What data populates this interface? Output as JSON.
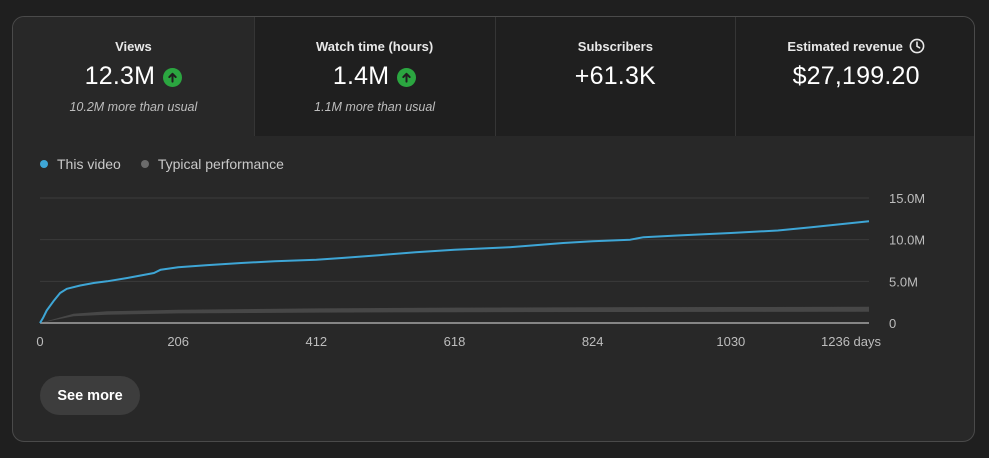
{
  "metrics": [
    {
      "label": "Views",
      "value": "12.3M",
      "trend": "up",
      "note": "10.2M more than usual"
    },
    {
      "label": "Watch time (hours)",
      "value": "1.4M",
      "trend": "up",
      "note": "1.1M more than usual"
    },
    {
      "label": "Subscribers",
      "value": "+61.3K",
      "trend": "",
      "note": ""
    },
    {
      "label": "Estimated revenue",
      "value": "$27,199.20",
      "trend": "",
      "note": "",
      "icon": "clock-icon"
    }
  ],
  "legend": [
    {
      "label": "This video",
      "color": "#3ea6d6"
    },
    {
      "label": "Typical performance",
      "color": "#6b6b6b"
    }
  ],
  "chart_data": {
    "type": "line",
    "xlabel": "",
    "ylabel": "",
    "xlim": [
      0,
      1236
    ],
    "ylim": [
      0,
      15000000
    ],
    "x_ticks": [
      "0",
      "206",
      "412",
      "618",
      "824",
      "1030",
      "1236 days"
    ],
    "y_ticks": [
      "15.0M",
      "10.0M",
      "5.0M",
      "0"
    ],
    "grid": true,
    "legend_position": "top-left",
    "series": [
      {
        "name": "This video",
        "color": "#3ea6d6",
        "x": [
          0,
          5,
          10,
          20,
          30,
          40,
          60,
          80,
          100,
          130,
          150,
          170,
          180,
          206,
          250,
          300,
          350,
          412,
          450,
          500,
          560,
          618,
          700,
          780,
          824,
          880,
          900,
          950,
          1030,
          1100,
          1150,
          1200,
          1236
        ],
        "y": [
          0,
          700000,
          1500000,
          2600000,
          3600000,
          4100000,
          4500000,
          4800000,
          5000000,
          5400000,
          5700000,
          6000000,
          6400000,
          6700000,
          6950000,
          7200000,
          7400000,
          7600000,
          7800000,
          8100000,
          8500000,
          8800000,
          9100000,
          9600000,
          9800000,
          10000000,
          10300000,
          10500000,
          10800000,
          11100000,
          11500000,
          11900000,
          12200000
        ]
      },
      {
        "name": "Typical performance",
        "color": "#6b6b6b",
        "x": [
          0,
          50,
          100,
          206,
          412,
          618,
          824,
          1030,
          1236
        ],
        "y_low": [
          0,
          800000,
          1000000,
          1150000,
          1250000,
          1300000,
          1320000,
          1330000,
          1340000
        ],
        "y_high": [
          0,
          1100000,
          1400000,
          1600000,
          1750000,
          1850000,
          1900000,
          1920000,
          1940000
        ]
      }
    ]
  },
  "see_more_label": "See more"
}
